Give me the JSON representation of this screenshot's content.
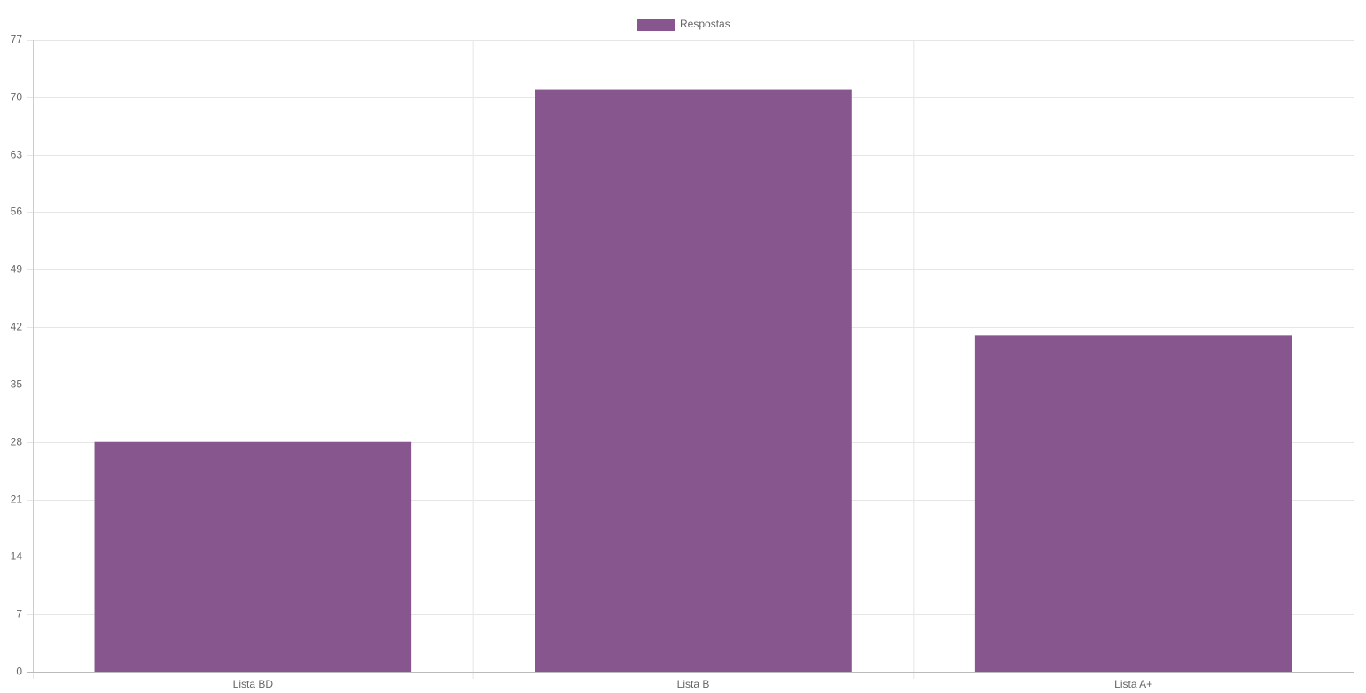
{
  "chart_data": {
    "type": "bar",
    "categories": [
      "Lista BD",
      "Lista B",
      "Lista A+"
    ],
    "series": [
      {
        "name": "Respostas",
        "color": "#88568f",
        "values": [
          28,
          71,
          41
        ]
      }
    ],
    "ylim": [
      0,
      77
    ],
    "yticks": [
      0,
      7,
      14,
      21,
      28,
      35,
      42,
      49,
      56,
      63,
      70,
      77
    ],
    "grid": true,
    "legend": "top"
  }
}
